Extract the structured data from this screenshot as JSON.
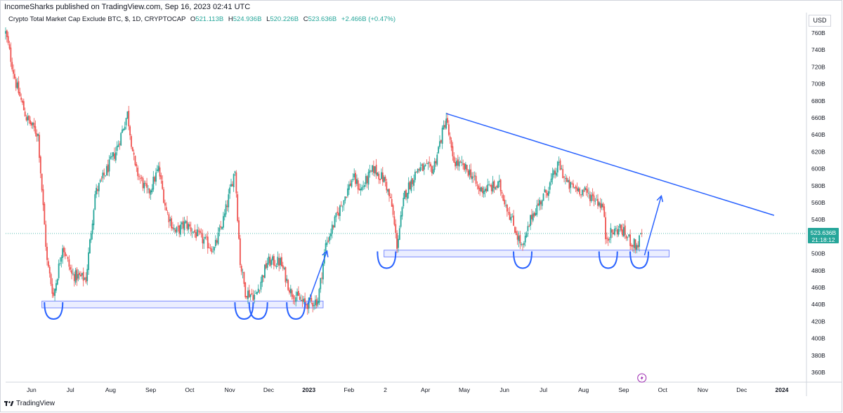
{
  "header": {
    "publisher": "IncomeSharks published on TradingView.com, Sep 16, 2023 02:41 UTC",
    "symbol": "Crypto Total Market Cap Exclude BTC, $, 1D, CRYPTOCAP",
    "o_label": "O",
    "o_value": "521.113B",
    "h_label": "H",
    "h_value": "524.936B",
    "l_label": "L",
    "l_value": "520.226B",
    "c_label": "C",
    "c_value": "523.636B",
    "change": "+2.466B (+0.47%)"
  },
  "currency_button": "USD",
  "footer": {
    "brand": "TradingView"
  },
  "price_tag": {
    "value": "523.636B",
    "countdown": "21:18:12"
  },
  "colors": {
    "up": "#26a69a",
    "down": "#ef5350",
    "drawing": "#2962ff",
    "zone": "#c5cfff",
    "last": "#26a69a"
  },
  "chart_data": {
    "type": "candlestick",
    "title": "Crypto Total Market Cap Exclude BTC, $, 1D, CRYPTOCAP",
    "y_unit": "B",
    "y_ticks": [
      "760B",
      "740B",
      "720B",
      "700B",
      "680B",
      "660B",
      "640B",
      "620B",
      "600B",
      "580B",
      "560B",
      "540B",
      "520B",
      "500B",
      "480B",
      "460B",
      "440B",
      "420B",
      "400B",
      "380B",
      "360B"
    ],
    "y_range": [
      345,
      770
    ],
    "x_ticks": [
      "Jun",
      "Jul",
      "Aug",
      "Sep",
      "Oct",
      "Nov",
      "Dec",
      "2023",
      "Feb",
      "2",
      "Apr",
      "May",
      "Jun",
      "Jul",
      "Aug",
      "Sep",
      "Oct",
      "Nov",
      "Dec",
      "2024"
    ],
    "x_range": [
      "2022-05-12",
      "2024-01-20"
    ],
    "last_close": 523.636,
    "price_path": [
      [
        "2022-05-12",
        760
      ],
      [
        "2022-05-20",
        700
      ],
      [
        "2022-05-28",
        660
      ],
      [
        "2022-06-06",
        640
      ],
      [
        "2022-06-13",
        490
      ],
      [
        "2022-06-18",
        450
      ],
      [
        "2022-06-25",
        510
      ],
      [
        "2022-07-02",
        475
      ],
      [
        "2022-07-13",
        470
      ],
      [
        "2022-07-20",
        570
      ],
      [
        "2022-07-28",
        595
      ],
      [
        "2022-08-05",
        620
      ],
      [
        "2022-08-14",
        665
      ],
      [
        "2022-08-20",
        600
      ],
      [
        "2022-08-30",
        570
      ],
      [
        "2022-09-07",
        600
      ],
      [
        "2022-09-13",
        550
      ],
      [
        "2022-09-20",
        525
      ],
      [
        "2022-09-28",
        535
      ],
      [
        "2022-10-08",
        520
      ],
      [
        "2022-10-20",
        505
      ],
      [
        "2022-10-28",
        545
      ],
      [
        "2022-11-05",
        600
      ],
      [
        "2022-11-09",
        490
      ],
      [
        "2022-11-13",
        455
      ],
      [
        "2022-11-21",
        450
      ],
      [
        "2022-11-30",
        490
      ],
      [
        "2022-12-10",
        490
      ],
      [
        "2022-12-18",
        455
      ],
      [
        "2022-12-29",
        440
      ],
      [
        "2023-01-08",
        445
      ],
      [
        "2023-01-14",
        510
      ],
      [
        "2023-01-24",
        550
      ],
      [
        "2023-02-04",
        590
      ],
      [
        "2023-02-10",
        575
      ],
      [
        "2023-02-20",
        600
      ],
      [
        "2023-03-01",
        585
      ],
      [
        "2023-03-06",
        555
      ],
      [
        "2023-03-10",
        510
      ],
      [
        "2023-03-16",
        570
      ],
      [
        "2023-03-26",
        600
      ],
      [
        "2023-04-07",
        600
      ],
      [
        "2023-04-17",
        660
      ],
      [
        "2023-04-22",
        610
      ],
      [
        "2023-05-06",
        595
      ],
      [
        "2023-05-12",
        575
      ],
      [
        "2023-05-28",
        580
      ],
      [
        "2023-06-10",
        525
      ],
      [
        "2023-06-15",
        505
      ],
      [
        "2023-06-22",
        545
      ],
      [
        "2023-07-04",
        575
      ],
      [
        "2023-07-13",
        605
      ],
      [
        "2023-07-20",
        580
      ],
      [
        "2023-07-30",
        575
      ],
      [
        "2023-08-10",
        565
      ],
      [
        "2023-08-16",
        555
      ],
      [
        "2023-08-18",
        520
      ],
      [
        "2023-08-29",
        530
      ],
      [
        "2023-09-06",
        515
      ],
      [
        "2023-09-11",
        508
      ],
      [
        "2023-09-15",
        523.6
      ]
    ],
    "annotations": {
      "support_zones": [
        {
          "from": "2022-06-09",
          "to": "2023-01-12",
          "low": 436,
          "high": 444
        },
        {
          "from": "2023-02-28",
          "to": "2023-10-06",
          "low": 496,
          "high": 504
        }
      ],
      "descending_trendline": [
        [
          "2023-04-17",
          665
        ],
        [
          "2023-12-26",
          545
        ]
      ],
      "up_arrows": [
        [
          [
            "2022-12-31",
            440
          ],
          [
            "2023-01-15",
            503
          ]
        ],
        [
          [
            "2023-09-17",
            498
          ],
          [
            "2023-09-30",
            568
          ]
        ]
      ],
      "bottom_arcs": [
        "2022-06-18",
        "2022-11-12",
        "2022-11-23",
        "2022-12-22",
        "2023-03-02",
        "2023-06-15",
        "2023-08-20",
        "2023-09-13"
      ]
    }
  }
}
